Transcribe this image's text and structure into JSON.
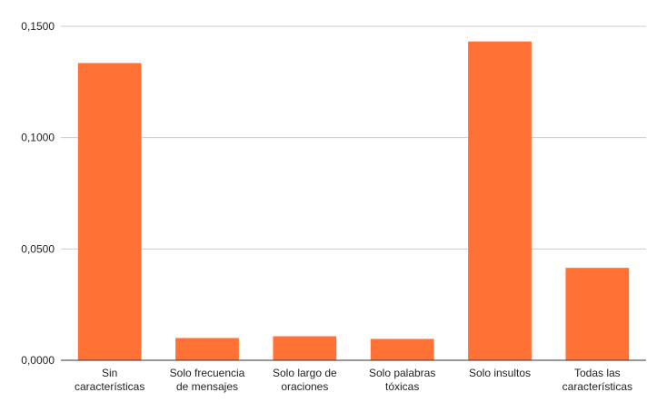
{
  "chart_data": {
    "type": "bar",
    "title": "",
    "xlabel": "",
    "ylabel": "",
    "categories": [
      [
        "Sin",
        "características"
      ],
      [
        "Solo frecuencia",
        "de mensajes"
      ],
      [
        "Solo largo de",
        "oraciones"
      ],
      [
        "Solo palabras",
        "tóxicas"
      ],
      [
        "Solo insultos"
      ],
      [
        "Todas las",
        "características"
      ]
    ],
    "values": [
      0.1335,
      0.01,
      0.0108,
      0.0096,
      0.1432,
      0.0415
    ],
    "ylim": [
      0,
      0.15
    ],
    "yticks": [
      {
        "value": 0,
        "label": "0,0000"
      },
      {
        "value": 0.05,
        "label": "0,0500"
      },
      {
        "value": 0.1,
        "label": "0,1000"
      },
      {
        "value": 0.15,
        "label": "0,1500"
      }
    ],
    "grid": true,
    "legend": "none",
    "bar_color": "#ff7134"
  }
}
